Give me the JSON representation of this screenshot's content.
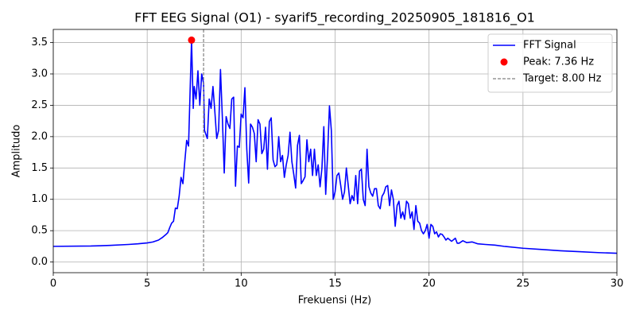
{
  "chart_data": {
    "type": "line",
    "title": "FFT EEG Signal (O1) - syarif5_recording_20250905_181816_O1",
    "x_label": "Frekuensi (Hz)",
    "y_label": "Amplitudo",
    "xlim": [
      0,
      30
    ],
    "ylim": [
      -0.17,
      3.71
    ],
    "xticks": [
      0,
      5,
      10,
      15,
      20,
      25,
      30
    ],
    "yticks": [
      {
        "value": 0,
        "label": "0.0"
      },
      0.5,
      {
        "value": 1,
        "label": "1.0"
      },
      1.5,
      {
        "value": 2,
        "label": "2.0"
      },
      2.5,
      {
        "value": 3,
        "label": "3.0"
      },
      3.5
    ],
    "grid": true,
    "legend": "upper right",
    "series": [
      {
        "name": "FFT Signal",
        "color": "#0000ff",
        "style": "line",
        "x": [
          0,
          2,
          3,
          4,
          4.5,
          5,
          5.3,
          5.6,
          5.8,
          6.0,
          6.1,
          6.2,
          6.3,
          6.4,
          6.5,
          6.6,
          6.7,
          6.8,
          6.9,
          7.0,
          7.1,
          7.2,
          7.36,
          7.45,
          7.5,
          7.6,
          7.7,
          7.8,
          7.9,
          8.0,
          8.05,
          8.2,
          8.3,
          8.4,
          8.5,
          8.6,
          8.7,
          8.8,
          8.9,
          9.0,
          9.1,
          9.2,
          9.3,
          9.4,
          9.5,
          9.6,
          9.7,
          9.8,
          9.9,
          10.0,
          10.1,
          10.2,
          10.3,
          10.4,
          10.5,
          10.6,
          10.7,
          10.8,
          10.9,
          11.0,
          11.1,
          11.2,
          11.3,
          11.4,
          11.5,
          11.6,
          11.7,
          11.8,
          11.9,
          12.0,
          12.1,
          12.2,
          12.3,
          12.4,
          12.5,
          12.6,
          12.7,
          12.8,
          12.9,
          13.0,
          13.1,
          13.2,
          13.3,
          13.4,
          13.5,
          13.6,
          13.7,
          13.8,
          13.9,
          14.0,
          14.1,
          14.2,
          14.3,
          14.4,
          14.5,
          14.6,
          14.7,
          14.8,
          14.9,
          15.0,
          15.1,
          15.2,
          15.3,
          15.4,
          15.5,
          15.6,
          15.7,
          15.8,
          15.9,
          16.0,
          16.1,
          16.2,
          16.3,
          16.4,
          16.5,
          16.6,
          16.7,
          16.8,
          16.9,
          17.0,
          17.1,
          17.2,
          17.3,
          17.4,
          17.5,
          17.6,
          17.7,
          17.8,
          17.9,
          18.0,
          18.1,
          18.2,
          18.3,
          18.4,
          18.5,
          18.6,
          18.7,
          18.8,
          18.9,
          19.0,
          19.1,
          19.2,
          19.3,
          19.4,
          19.5,
          19.6,
          19.7,
          19.8,
          19.9,
          20.0,
          20.1,
          20.2,
          20.3,
          20.4,
          20.5,
          20.6,
          20.7,
          20.8,
          20.9,
          21.0,
          21.2,
          21.4,
          21.5,
          21.6,
          21.8,
          22.0,
          22.3,
          22.6,
          23.0,
          23.5,
          24,
          25,
          26,
          27,
          28,
          29,
          30
        ],
        "values": [
          0.25,
          0.255,
          0.265,
          0.28,
          0.29,
          0.305,
          0.32,
          0.35,
          0.39,
          0.44,
          0.47,
          0.55,
          0.62,
          0.65,
          0.86,
          0.85,
          1.05,
          1.35,
          1.25,
          1.6,
          1.94,
          1.85,
          3.54,
          2.45,
          2.8,
          2.6,
          3.05,
          2.5,
          3.0,
          2.85,
          2.1,
          1.97,
          2.6,
          2.45,
          2.8,
          2.4,
          1.97,
          2.1,
          3.07,
          2.3,
          1.42,
          2.32,
          2.2,
          2.13,
          2.6,
          2.63,
          1.21,
          1.85,
          1.83,
          2.36,
          2.3,
          2.78,
          1.8,
          1.26,
          2.2,
          2.15,
          2.05,
          1.6,
          2.27,
          2.2,
          1.73,
          1.8,
          2.15,
          1.48,
          2.24,
          2.3,
          1.63,
          1.52,
          1.55,
          2.0,
          1.6,
          1.7,
          1.35,
          1.55,
          1.7,
          2.07,
          1.6,
          1.4,
          1.18,
          1.86,
          2.02,
          1.25,
          1.3,
          1.36,
          1.95,
          1.6,
          1.8,
          1.38,
          1.8,
          1.38,
          1.55,
          1.2,
          1.5,
          2.16,
          1.08,
          1.7,
          2.49,
          2.1,
          1.0,
          1.12,
          1.38,
          1.42,
          1.22,
          1.0,
          1.12,
          1.5,
          1.22,
          0.93,
          1.06,
          0.98,
          1.38,
          0.93,
          1.45,
          1.48,
          1.0,
          0.9,
          1.8,
          1.2,
          1.1,
          1.05,
          1.17,
          1.17,
          0.9,
          0.85,
          1.05,
          1.1,
          1.2,
          1.22,
          0.9,
          1.15,
          1.0,
          0.57,
          0.9,
          0.97,
          0.7,
          0.8,
          0.68,
          0.97,
          0.93,
          0.7,
          0.8,
          0.52,
          0.9,
          0.65,
          0.62,
          0.5,
          0.45,
          0.5,
          0.6,
          0.38,
          0.6,
          0.57,
          0.45,
          0.48,
          0.4,
          0.45,
          0.44,
          0.4,
          0.35,
          0.38,
          0.33,
          0.38,
          0.3,
          0.3,
          0.34,
          0.31,
          0.32,
          0.29,
          0.28,
          0.27,
          0.25,
          0.22,
          0.2,
          0.18,
          0.165,
          0.15,
          0.14
        ]
      },
      {
        "name": "Peak: 7.36 Hz",
        "color": "#ff0000",
        "style": "point",
        "x": [
          7.36
        ],
        "values": [
          3.54
        ]
      }
    ],
    "vlines": [
      {
        "name": "Target: 8.00 Hz",
        "color": "#808080",
        "x": 8
      }
    ]
  }
}
